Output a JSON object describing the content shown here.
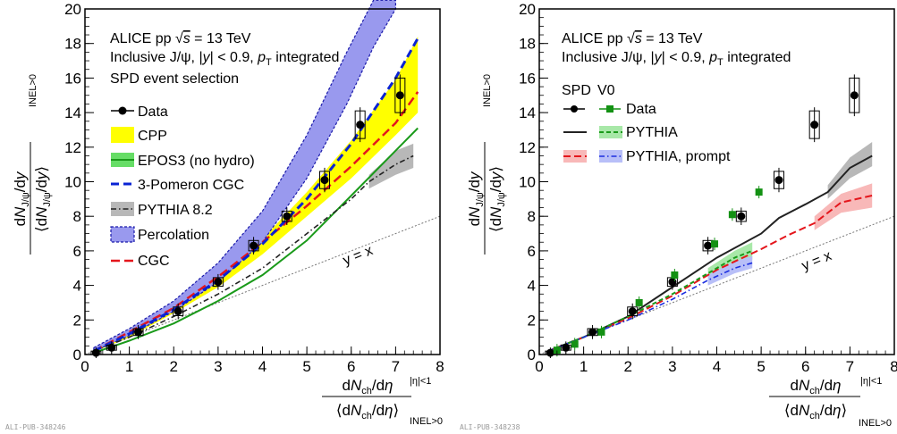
{
  "chart_data": [
    {
      "type": "line",
      "panel": "left",
      "xlim": [
        0,
        8
      ],
      "ylim": [
        0,
        20
      ],
      "xticks": [
        0,
        1,
        2,
        3,
        4,
        5,
        6,
        7,
        8
      ],
      "yticks": [
        0,
        2,
        4,
        6,
        8,
        10,
        12,
        14,
        16,
        18,
        20
      ],
      "ylabel": "dN_J/ψ/dy / ⟨dN_J/ψ/dy⟩",
      "ylabel_sub": "INEL>0",
      "xlabel": "dN_ch/dη / ⟨dN_ch/dη⟩",
      "xlabel_sub_top": "|η|<1",
      "xlabel_sub_bottom": "INEL>0",
      "header": [
        "ALICE pp √s = 13 TeV",
        "Inclusive J/ψ, |y| < 0.9, p_T integrated",
        "SPD event selection"
      ],
      "pub_id": "ALI-PUB-348246",
      "annotation": "y = x",
      "legend": [
        "Data",
        "CPP",
        "EPOS3 (no hydro)",
        "3-Pomeron CGC",
        "PYTHIA 8.2",
        "Percolation",
        "CGC"
      ],
      "data": {
        "x": [
          0.25,
          0.6,
          1.2,
          2.1,
          3.0,
          3.8,
          4.55,
          5.4,
          6.2,
          7.1
        ],
        "y": [
          0.1,
          0.4,
          1.3,
          2.5,
          4.2,
          6.3,
          8.0,
          10.1,
          13.3,
          15.0
        ],
        "syst_dy": [
          0.1,
          0.15,
          0.2,
          0.25,
          0.25,
          0.3,
          0.3,
          0.5,
          0.8,
          1.0
        ]
      },
      "models": {
        "cpp_band": {
          "x": [
            0.2,
            1,
            2,
            3,
            4,
            5,
            6,
            7,
            7.5
          ],
          "low": [
            0.15,
            1.0,
            2.4,
            3.9,
            5.8,
            8.0,
            10.2,
            12.7,
            14.0
          ],
          "high": [
            0.35,
            1.5,
            2.9,
            4.8,
            6.7,
            9.4,
            12.4,
            15.9,
            18.4
          ]
        },
        "epos3": {
          "x": [
            0.2,
            1,
            2,
            3,
            4,
            5,
            6,
            7,
            7.5
          ],
          "y": [
            0.1,
            0.8,
            1.8,
            3.1,
            4.6,
            6.6,
            9.2,
            11.8,
            13.1
          ]
        },
        "pomeron": {
          "x": [
            0.2,
            1,
            2,
            3,
            4,
            5,
            6,
            7,
            7.5
          ],
          "y": [
            0.2,
            1.2,
            2.6,
            4.3,
            6.4,
            9.0,
            12.2,
            16.0,
            18.3
          ]
        },
        "pythia": {
          "x": [
            0.2,
            1,
            2,
            3,
            4,
            5,
            6,
            6.4,
            7,
            7.4
          ],
          "y": [
            0.2,
            1.0,
            2.2,
            3.5,
            5.0,
            7.0,
            9.0,
            10.0,
            11.0,
            11.5
          ]
        },
        "pythia_band": {
          "x": [
            6.4,
            7.0,
            7.4
          ],
          "low": [
            9.6,
            10.4,
            10.8
          ],
          "high": [
            10.4,
            11.8,
            12.2
          ]
        },
        "percolation": {
          "x": [
            0.2,
            1,
            2,
            3,
            4,
            5,
            5.9,
            6.5,
            7.0
          ],
          "low": [
            0.2,
            1.1,
            2.5,
            4.2,
            6.5,
            10.2,
            14.5,
            17.8,
            20.0
          ],
          "high": [
            0.4,
            1.5,
            3.1,
            5.3,
            8.3,
            12.7,
            17.5,
            20.5,
            20.5
          ]
        },
        "cgc": {
          "x": [
            0.2,
            1,
            2,
            3,
            4,
            5,
            6,
            7,
            7.5
          ],
          "y": [
            0.2,
            1.3,
            2.7,
            4.5,
            6.5,
            8.6,
            10.9,
            13.4,
            15.2
          ]
        },
        "yeqx": {
          "x": [
            0,
            8
          ],
          "y": [
            0,
            8
          ]
        }
      }
    },
    {
      "type": "line",
      "panel": "right",
      "xlim": [
        0,
        8
      ],
      "ylim": [
        0,
        20
      ],
      "xticks": [
        0,
        1,
        2,
        3,
        4,
        5,
        6,
        7,
        8
      ],
      "yticks": [
        0,
        2,
        4,
        6,
        8,
        10,
        12,
        14,
        16,
        18,
        20
      ],
      "ylabel": "dN_J/ψ/dy / ⟨dN_J/ψ/dy⟩",
      "ylabel_sub": "INEL>0",
      "xlabel": "dN_ch/dη / ⟨dN_ch/dη⟩",
      "xlabel_sub_top": "|η|<1",
      "xlabel_sub_bottom": "INEL>0",
      "header": [
        "ALICE pp √s = 13 TeV",
        "Inclusive J/ψ, |y| < 0.9, p_T integrated"
      ],
      "pub_id": "ALI-PUB-348238",
      "annotation": "y = x",
      "legend_columns": [
        "SPD",
        "V0"
      ],
      "legend": [
        "Data",
        "PYTHIA",
        "PYTHIA, prompt"
      ],
      "spd": {
        "x": [
          0.25,
          0.6,
          1.2,
          2.1,
          3.0,
          3.8,
          4.55,
          5.4,
          6.2,
          7.1
        ],
        "y": [
          0.1,
          0.4,
          1.3,
          2.5,
          4.2,
          6.3,
          8.0,
          10.1,
          13.3,
          15.0
        ],
        "syst_dy": [
          0.1,
          0.15,
          0.2,
          0.25,
          0.25,
          0.3,
          0.3,
          0.5,
          0.8,
          1.0
        ]
      },
      "v0": {
        "x": [
          0.4,
          0.8,
          1.4,
          2.25,
          3.05,
          3.95,
          4.35,
          4.95
        ],
        "y": [
          0.25,
          0.6,
          1.3,
          3.0,
          4.6,
          6.4,
          8.1,
          9.4
        ]
      },
      "models": {
        "pythia_spd": {
          "x": [
            0.2,
            1,
            2,
            3,
            4,
            5,
            5.4,
            6,
            6.5,
            7,
            7.5
          ],
          "y": [
            0.2,
            1.0,
            2.2,
            3.9,
            5.6,
            7.0,
            7.9,
            8.7,
            9.4,
            10.8,
            11.5
          ]
        },
        "pythia_spd_band": {
          "x": [
            6.5,
            7.0,
            7.5
          ],
          "low": [
            9.0,
            10.2,
            10.9
          ],
          "high": [
            9.8,
            11.4,
            12.3
          ]
        },
        "pythia_prompt_spd": {
          "x": [
            0.2,
            1,
            2,
            3,
            4,
            5,
            5.6,
            6.2,
            6.8,
            7.5
          ],
          "y": [
            0.2,
            1.0,
            2.1,
            3.4,
            4.9,
            6.1,
            6.9,
            7.6,
            8.8,
            9.2
          ]
        },
        "pythia_prompt_spd_band": {
          "x": [
            6.2,
            6.8,
            7.5
          ],
          "low": [
            7.2,
            8.2,
            8.5
          ],
          "high": [
            8.0,
            9.3,
            9.9
          ]
        },
        "pythia_v0": {
          "x": [
            0.2,
            1,
            2,
            3,
            3.8,
            4.4,
            4.8
          ],
          "y": [
            0.2,
            1.0,
            2.2,
            3.5,
            4.7,
            5.6,
            6.0
          ]
        },
        "pythia_v0_band": {
          "x": [
            3.8,
            4.4,
            4.8
          ],
          "low": [
            4.4,
            5.2,
            5.5
          ],
          "high": [
            5.0,
            6.0,
            6.5
          ]
        },
        "pythia_prompt_v0": {
          "x": [
            0.2,
            1,
            2,
            3,
            3.8,
            4.4,
            4.8
          ],
          "y": [
            0.2,
            1.0,
            2.0,
            3.2,
            4.3,
            5.0,
            5.3
          ]
        },
        "pythia_prompt_v0_band": {
          "x": [
            3.8,
            4.4,
            4.8
          ],
          "low": [
            4.0,
            4.7,
            5.0
          ],
          "high": [
            4.6,
            5.4,
            5.7
          ]
        },
        "yeqx": {
          "x": [
            0,
            8
          ],
          "y": [
            0,
            8
          ]
        }
      }
    }
  ],
  "colors": {
    "cpp": "#ffff00",
    "epos3": "#1a9a1a",
    "epos3_legend": "#66dd66",
    "pomeron": "#0a23d4",
    "pythia": "#222222",
    "pythia_band": "#b8b8b8",
    "percolation_fill": "#9999ee",
    "percolation_edge": "#1a1aaa",
    "cgc": "#e4161c",
    "v0": "#139113",
    "pythia_red": "#e4161c",
    "pythia_red_band": "#f8b8b8",
    "prompt_blue": "#1c2ee0",
    "prompt_blue_band": "#b8bff8",
    "green_band": "#a8e8a8",
    "diag": "#777777"
  }
}
